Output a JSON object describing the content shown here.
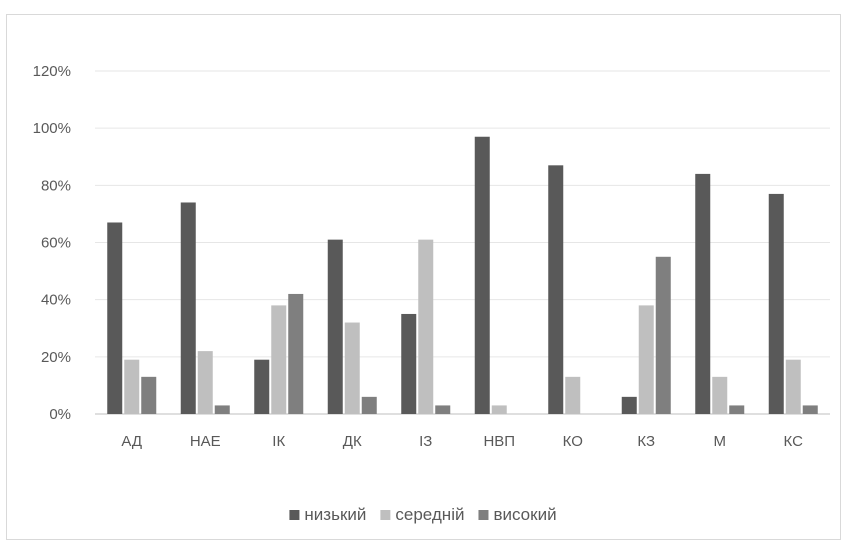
{
  "chart_data": {
    "type": "bar",
    "categories": [
      "АД",
      "НАЕ",
      "ІК",
      "ДК",
      "ІЗ",
      "НВП",
      "КО",
      "КЗ",
      "М",
      "КС"
    ],
    "series": [
      {
        "name": "низький",
        "color": "#595959",
        "values": [
          67,
          74,
          19,
          61,
          35,
          97,
          87,
          6,
          84,
          77
        ]
      },
      {
        "name": "середній",
        "color": "#bfbfbf",
        "values": [
          19,
          22,
          38,
          32,
          61,
          3,
          13,
          38,
          13,
          19
        ]
      },
      {
        "name": "високий",
        "color": "#7f7f7f",
        "values": [
          13,
          3,
          42,
          6,
          3,
          0,
          0,
          55,
          3,
          3
        ]
      }
    ],
    "yticks": [
      "0%",
      "20%",
      "40%",
      "60%",
      "80%",
      "100%",
      "120%"
    ],
    "ylim": [
      0,
      120
    ],
    "grid": true,
    "legend": "bottom",
    "title": "",
    "xlabel": "",
    "ylabel": ""
  }
}
